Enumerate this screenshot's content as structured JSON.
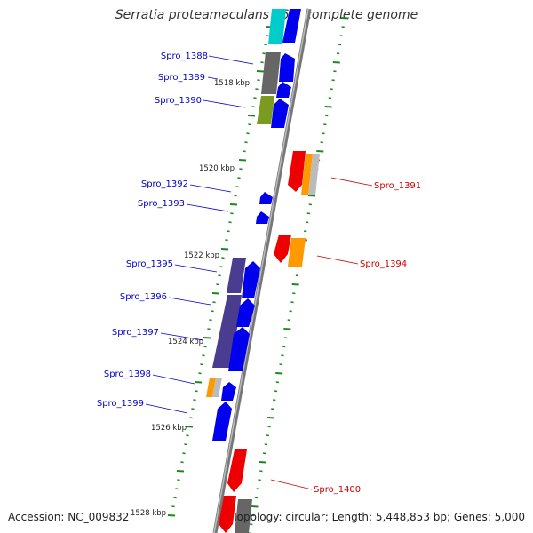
{
  "title": "Serratia proteamaculans 568, complete genome",
  "footer": {
    "accession": "Accession: NC_009832",
    "summary": "Topology: circular; Length: 5,448,853 bp; Genes: 5,000"
  },
  "ruler": {
    "labels": [
      "1518 kbp",
      "1520 kbp",
      "1522 kbp",
      "1524 kbp",
      "1526 kbp",
      "1528 kbp"
    ]
  },
  "genes_forward": [
    {
      "id": "Spro_1388",
      "color": "#0000ee"
    },
    {
      "id": "Spro_1389",
      "color": "#0000ee"
    },
    {
      "id": "Spro_1390",
      "color": "#0000ee"
    },
    {
      "id": "Spro_1392",
      "color": "#0000ee"
    },
    {
      "id": "Spro_1393",
      "color": "#0000ee"
    },
    {
      "id": "Spro_1395",
      "color": "#0000ee"
    },
    {
      "id": "Spro_1396",
      "color": "#0000ee"
    },
    {
      "id": "Spro_1397",
      "color": "#0000ee"
    },
    {
      "id": "Spro_1398",
      "color": "#0000ee"
    },
    {
      "id": "Spro_1399",
      "color": "#0000ee"
    }
  ],
  "genes_reverse": [
    {
      "id": "Spro_1391",
      "color": "#ee0000"
    },
    {
      "id": "Spro_1394",
      "color": "#ee0000"
    },
    {
      "id": "Spro_1400",
      "color": "#ee0000"
    }
  ],
  "colors": {
    "forward_label": "#0000cc",
    "reverse_label": "#cc0000",
    "backbone": "#888888",
    "tick": "#1a8a1a",
    "cog_gray": "#666666",
    "cog_olive": "#7a9a20",
    "cog_purple": "#4a3d8f",
    "cog_orange": "#ff9900",
    "cog_cyan": "#00cccc"
  }
}
